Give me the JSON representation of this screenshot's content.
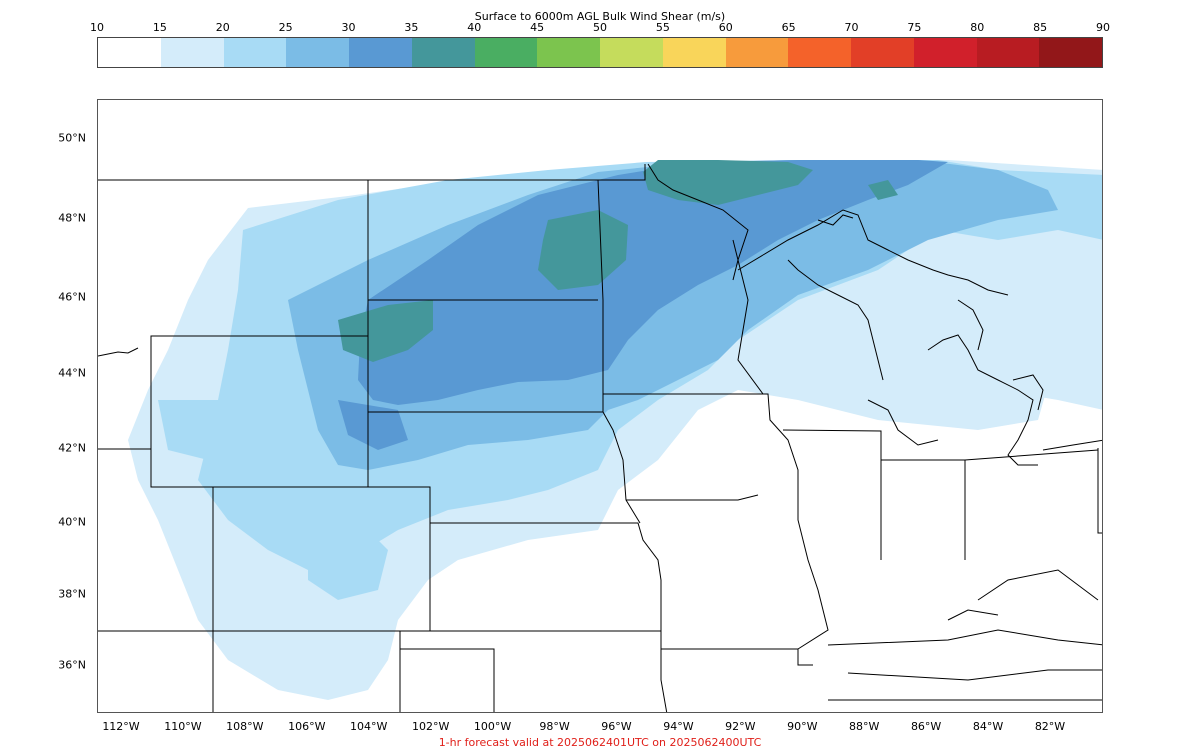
{
  "title": "Surface to 6000m AGL Bulk Wind Shear (m/s)",
  "footer": "1-hr forecast valid at 2025062401UTC on 2025062400UTC",
  "colorbar": {
    "levels": [
      "10",
      "15",
      "20",
      "25",
      "30",
      "35",
      "40",
      "45",
      "50",
      "55",
      "60",
      "65",
      "70",
      "75",
      "80",
      "85",
      "90"
    ],
    "colors": [
      "#ffffff",
      "#d4ecfa",
      "#a8dbf5",
      "#7bbce6",
      "#5999d3",
      "#44979b",
      "#4aae62",
      "#7cc44e",
      "#c5dc5c",
      "#f9d55a",
      "#f79b3c",
      "#f4622a",
      "#e23f27",
      "#d1202b",
      "#b81c22",
      "#921719"
    ]
  },
  "axes": {
    "lat_labels": [
      "50°N",
      "48°N",
      "46°N",
      "44°N",
      "42°N",
      "40°N",
      "38°N",
      "36°N"
    ],
    "lon_labels": [
      "112°W",
      "110°W",
      "108°W",
      "106°W",
      "104°W",
      "102°W",
      "100°W",
      "98°W",
      "96°W",
      "94°W",
      "92°W",
      "90°W",
      "88°W",
      "86°W",
      "84°W",
      "82°W"
    ]
  },
  "map": {
    "variable": "bulk wind shear",
    "region": "northern plains and upper midwest",
    "field_levels_present": [
      "15",
      "20",
      "25",
      "30",
      "35"
    ]
  }
}
